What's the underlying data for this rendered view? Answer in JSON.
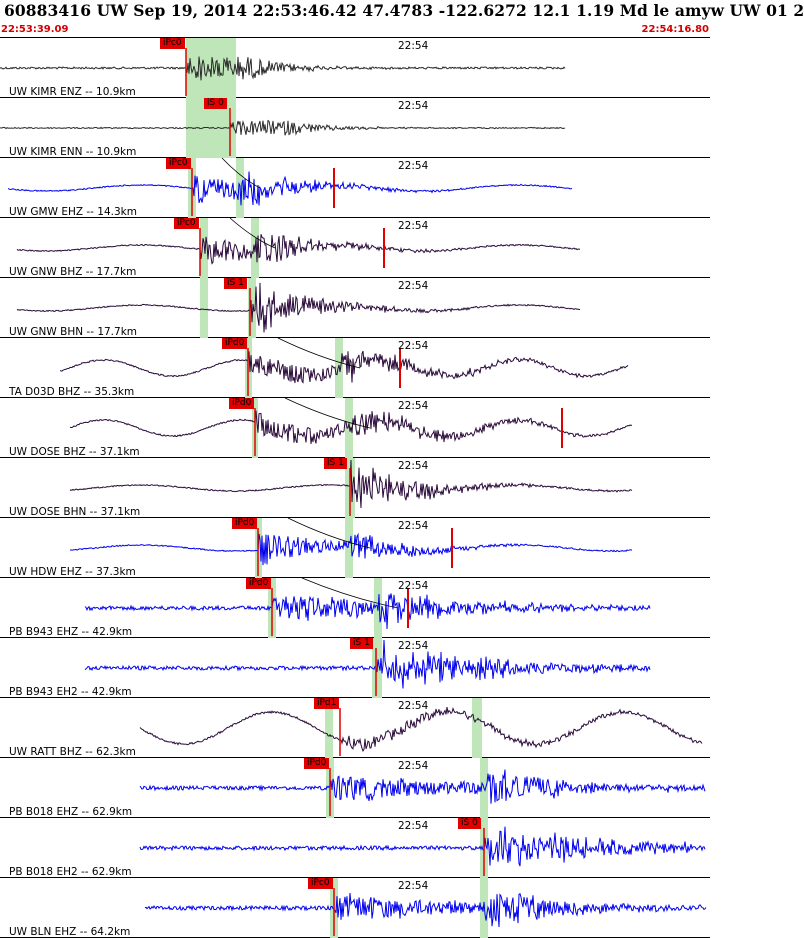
{
  "header": {
    "title": "60883416 UW Sep 19, 2014 22:53:46.42   47.4783 -122.6272 12.1 1.19 Md le amyw UW 01   2",
    "start_time": "22:53:39.09",
    "end_time": "22:54:16.80",
    "tick_label": "22:54"
  },
  "colors": {
    "black_trace": "#2a2a2a",
    "blue_trace": "#0000ee",
    "purple_trace": "#2a0a3a",
    "pick": "#e00000",
    "window": "#bfe6b8",
    "theory": "#000000"
  },
  "traces": [
    {
      "label": "UW KIMR ENZ -- 10.9km",
      "color": "black",
      "pick": "iPc0",
      "style": "short"
    },
    {
      "label": "UW KIMR ENN -- 10.9km",
      "color": "black",
      "pick": "iS 0",
      "style": "short"
    },
    {
      "label": "UW GMW EHZ -- 14.3km",
      "color": "blue",
      "pick": "iPc0",
      "style": "eq"
    },
    {
      "label": "UW GNW BHZ -- 17.7km",
      "color": "purple",
      "pick": "iPc0",
      "style": "eq"
    },
    {
      "label": "UW GNW BHN -- 17.7km",
      "color": "purple",
      "pick": "iS 1",
      "style": "eq"
    },
    {
      "label": "TA D03D BHZ -- 35.3km",
      "color": "purple",
      "pick": "iPd0",
      "style": "wavy"
    },
    {
      "label": "UW DOSE BHZ -- 37.1km",
      "color": "purple",
      "pick": "iPd0",
      "style": "wavy"
    },
    {
      "label": "UW DOSE BHN -- 37.1km",
      "color": "purple",
      "pick": "iS 1",
      "style": "eq"
    },
    {
      "label": "UW HDW EHZ -- 37.3km",
      "color": "blue",
      "pick": "iPd0",
      "style": "eq"
    },
    {
      "label": "PB B943 EHZ -- 42.9km",
      "color": "blue",
      "pick": "iPd0",
      "style": "noisy"
    },
    {
      "label": "PB B943 EH2 -- 42.9km",
      "color": "blue",
      "pick": "iS 1",
      "style": "noisy"
    },
    {
      "label": "UW RATT BHZ -- 62.3km",
      "color": "purple",
      "pick": "iPd1",
      "style": "bigwave"
    },
    {
      "label": "PB B018 EHZ -- 62.9km",
      "color": "blue",
      "pick": "iPd0",
      "style": "noisy"
    },
    {
      "label": "PB B018 EH2 -- 62.9km",
      "color": "blue",
      "pick": "iS 0",
      "style": "noisy"
    },
    {
      "label": "UW BLN EHZ -- 64.2km",
      "color": "blue",
      "pick": "iPc0",
      "style": "noisy"
    }
  ]
}
